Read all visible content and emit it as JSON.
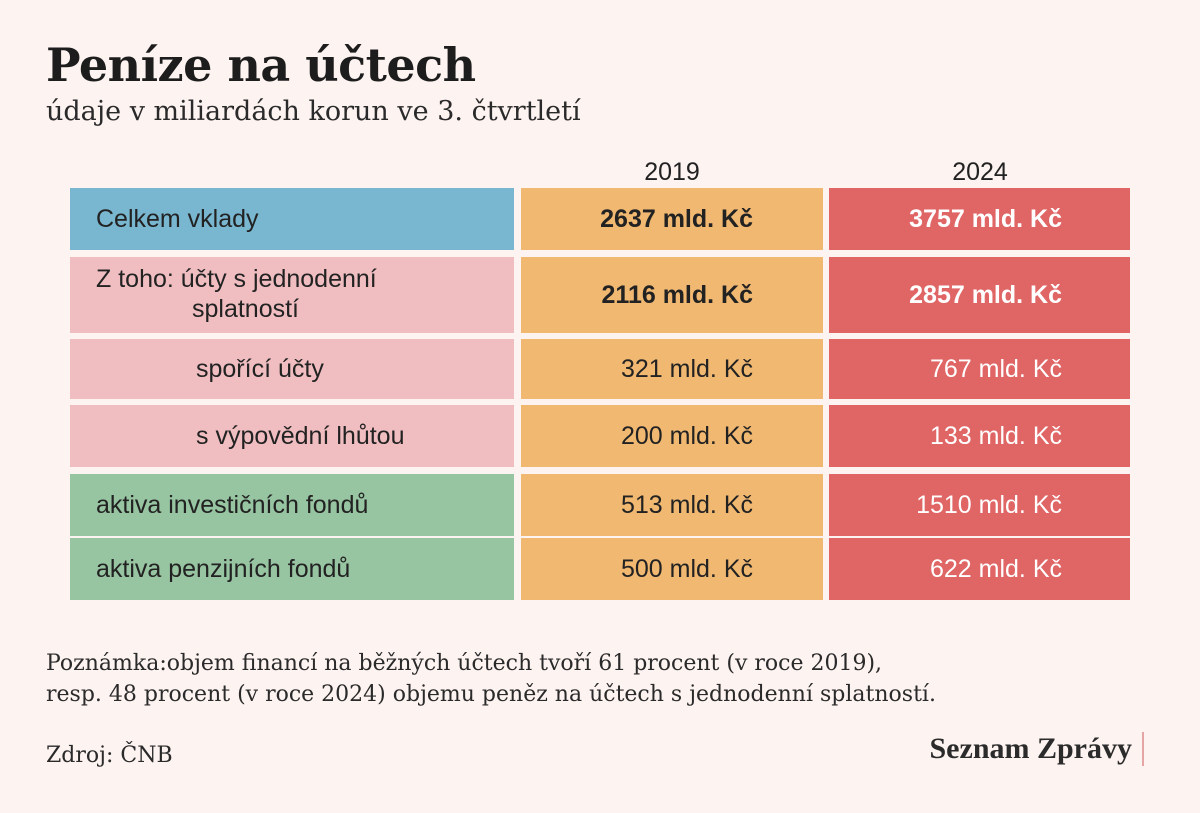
{
  "chart_data": {
    "type": "table",
    "title": "Peníze na účtech",
    "subtitle": "údaje v miliardách korun ve 3. čtvrtletí",
    "columns": [
      "2019",
      "2024"
    ],
    "rows": [
      {
        "label_1": "Celkem vklady",
        "label_2": "",
        "v2019": "2637 mld. Kč",
        "v2024": "3757 mld. Kč",
        "value_2019": 2637,
        "value_2024": 3757
      },
      {
        "label_1": "Z toho:  účty s jednodenní",
        "label_2": "splatností",
        "v2019": "2116  mld. Kč",
        "v2024": "2857  mld. Kč",
        "value_2019": 2116,
        "value_2024": 2857
      },
      {
        "label_1": "spořící účty",
        "label_2": "",
        "v2019": "321 mld. Kč",
        "v2024": "767 mld. Kč",
        "value_2019": 321,
        "value_2024": 767
      },
      {
        "label_1": "s výpovědní lhůtou",
        "label_2": "",
        "v2019": "200 mld. Kč",
        "v2024": "133  mld. Kč",
        "value_2019": 200,
        "value_2024": 133
      },
      {
        "label_1": "aktiva investičních fondů",
        "label_2": "",
        "v2019": "513 mld. Kč",
        "v2024": "1510  mld. Kč",
        "value_2019": 513,
        "value_2024": 1510
      },
      {
        "label_1": "aktiva penzijních fondů",
        "label_2": "",
        "v2019": "500 mld. Kč",
        "v2024": "622  mld. Kč",
        "value_2019": 500,
        "value_2024": 622
      }
    ],
    "colors": {
      "column_2019": "#f0b871",
      "column_2024": "#e06565",
      "total": "#79b6cf",
      "accounts": "#f0bec1",
      "funds": "#97c4a1"
    }
  },
  "note_line1": "Poznámka:objem financí na běžných účtech tvoří 61 procent (v roce 2019),",
  "note_line2": "resp. 48 procent (v roce 2024) objemu peněz na účtech s jednodenní splatností.",
  "source": "Zdroj: ČNB",
  "brand": "Seznam Zprávy"
}
